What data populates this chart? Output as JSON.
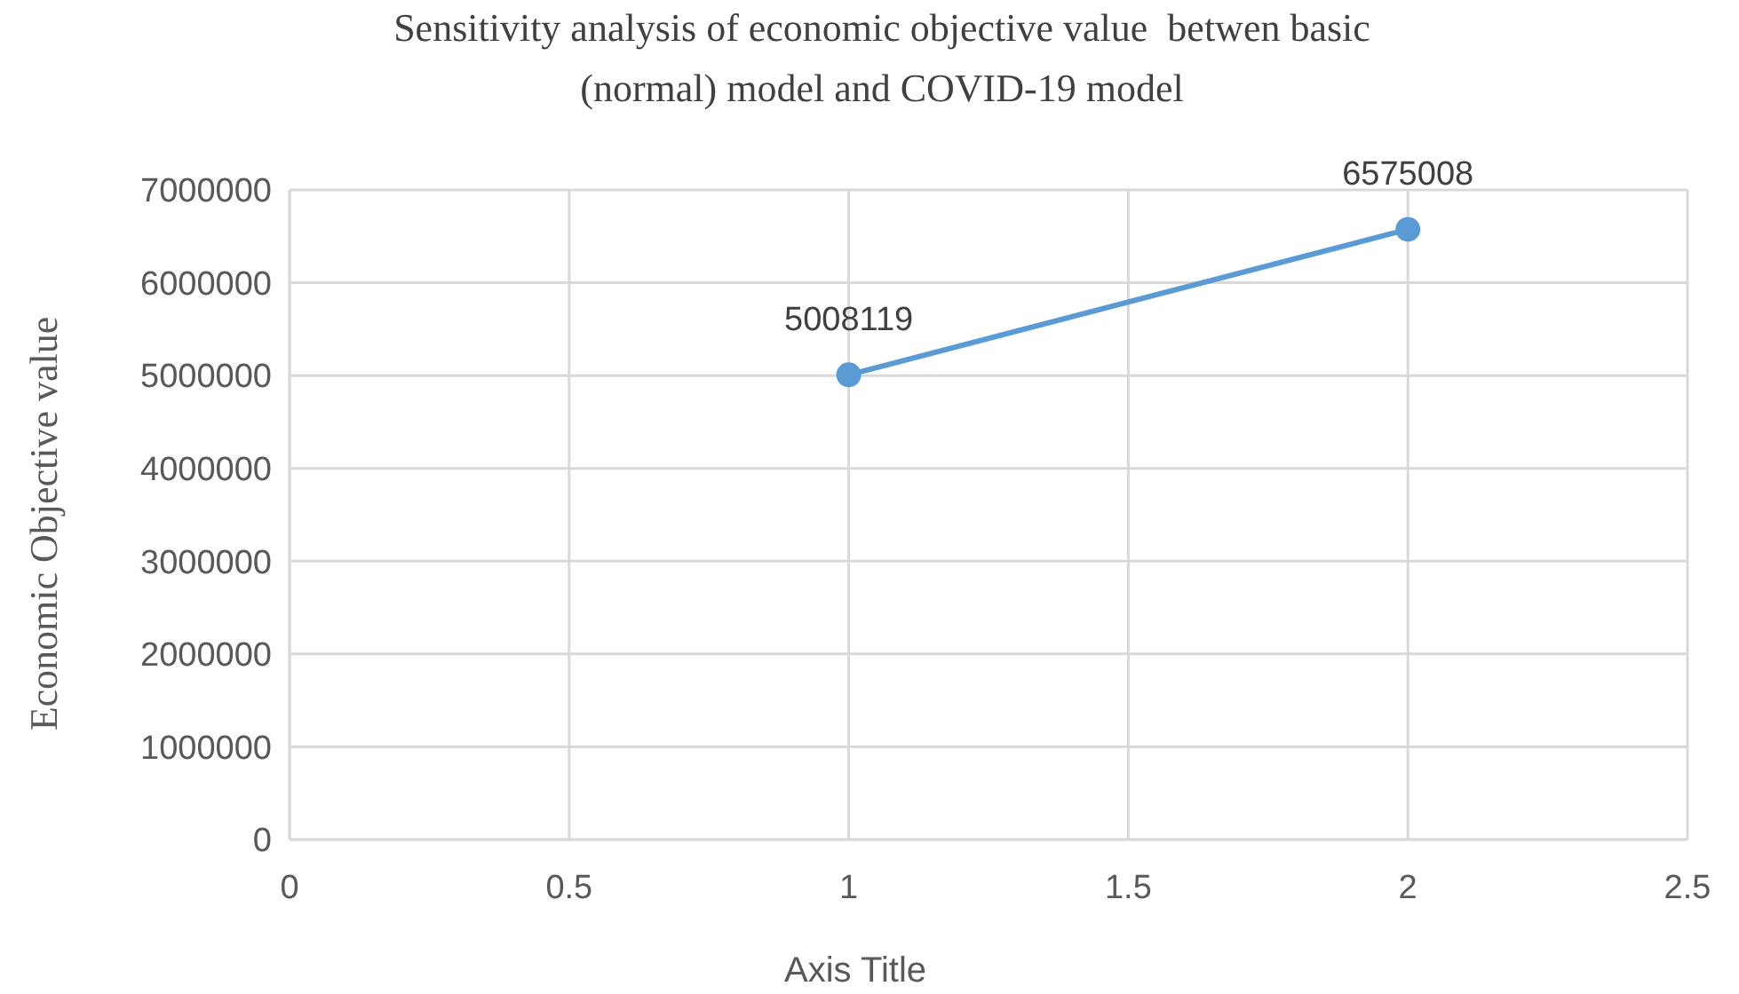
{
  "chart_data": {
    "type": "line",
    "title": "Sensitivity analysis of economic objective value  betwen basic\n(normal) model and COVID-19 model",
    "xlabel": "Axis Title",
    "ylabel": "Economic Objective value",
    "x": [
      1,
      2
    ],
    "series": [
      {
        "color": "#5b9bd5",
        "values": [
          5008119,
          6575008
        ]
      }
    ],
    "xlim": [
      0,
      2.5
    ],
    "xticks": [
      0,
      0.5,
      1,
      1.5,
      2,
      2.5
    ],
    "ylim": [
      0,
      7000000
    ],
    "yticks": [
      0,
      1000000,
      2000000,
      3000000,
      4000000,
      5000000,
      6000000,
      7000000
    ],
    "grid": true,
    "marker": "circle",
    "line_style": "solid",
    "data_labels": true
  }
}
